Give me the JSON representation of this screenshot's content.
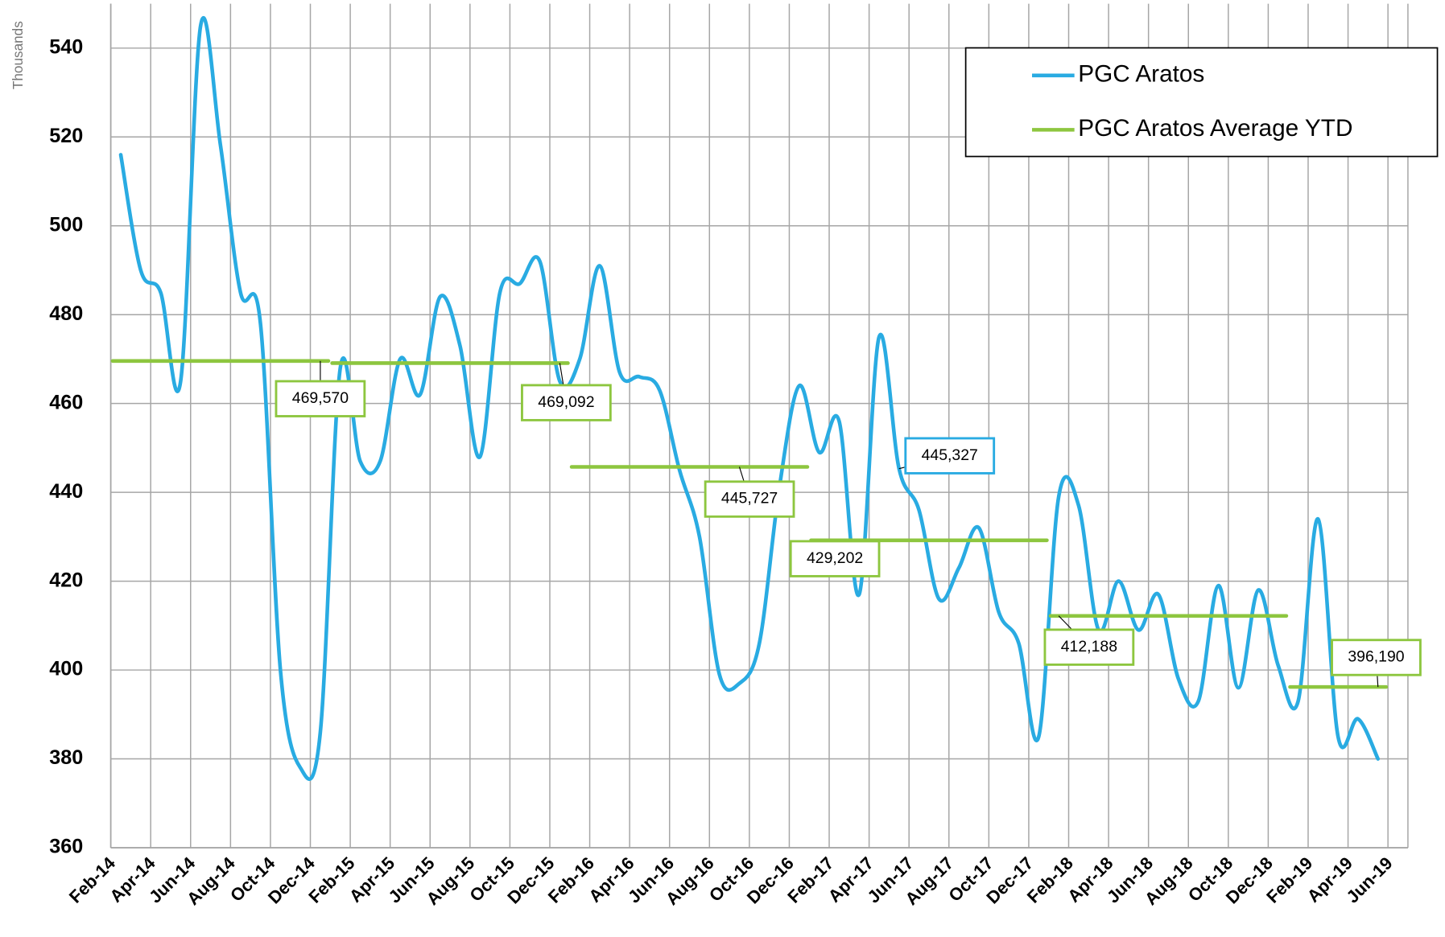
{
  "chart_data": {
    "type": "line",
    "y_axis_label": "Thousands",
    "categories": [
      "Feb-14",
      null,
      "Apr-14",
      null,
      "Jun-14",
      null,
      "Aug-14",
      null,
      "Oct-14",
      null,
      "Dec-14",
      null,
      "Feb-15",
      null,
      "Apr-15",
      null,
      "Jun-15",
      null,
      "Aug-15",
      null,
      "Oct-15",
      null,
      "Dec-15",
      null,
      "Feb-16",
      null,
      "Apr-16",
      null,
      "Jun-16",
      null,
      "Aug-16",
      null,
      "Oct-16",
      null,
      "Dec-16",
      null,
      "Feb-17",
      null,
      "Apr-17",
      null,
      "Jun-17",
      null,
      "Aug-17",
      null,
      "Oct-17",
      null,
      "Dec-17",
      null,
      "Feb-18",
      null,
      "Apr-18",
      null,
      "Jun-18",
      null,
      "Aug-18",
      null,
      "Oct-18",
      null,
      "Dec-18",
      null,
      "Feb-19",
      null,
      "Apr-19",
      null,
      "Jun-19"
    ],
    "series": [
      {
        "name": "PGC Aratos",
        "color": "#29abe2",
        "smooth": true,
        "values": [
          516,
          490,
          485,
          465,
          545,
          518,
          485,
          478,
          400,
          378,
          386,
          468,
          447,
          447,
          470,
          462,
          484,
          473,
          448,
          485,
          487,
          492,
          465,
          470,
          491,
          467,
          466,
          463,
          445,
          430,
          399,
          397,
          406,
          441,
          464,
          449,
          456,
          417,
          475,
          445.327,
          436,
          416,
          423,
          432,
          413,
          406,
          385,
          439,
          437,
          409,
          420,
          409,
          417,
          398,
          393,
          419,
          396,
          418,
          401,
          393,
          434,
          385,
          389,
          380,
          null
        ],
        "value_labels": [
          null,
          null,
          null,
          null,
          null,
          null,
          null,
          null,
          null,
          null,
          null,
          null,
          null,
          null,
          null,
          null,
          null,
          null,
          null,
          null,
          null,
          null,
          null,
          null,
          null,
          null,
          null,
          null,
          null,
          null,
          null,
          null,
          null,
          null,
          null,
          null,
          null,
          null,
          null,
          "445,327",
          null,
          null,
          null,
          null,
          null,
          null,
          null,
          null,
          null,
          null,
          null,
          null,
          null,
          null,
          null,
          null,
          null,
          null,
          null,
          null,
          null,
          null,
          null,
          null,
          null
        ]
      },
      {
        "name": "PGC Aratos Average YTD",
        "color": "#8dc63f",
        "gap_between_steps": true,
        "values": [
          469.57,
          469.57,
          469.57,
          469.57,
          469.57,
          469.57,
          469.57,
          469.57,
          469.57,
          469.57,
          469.57,
          469.092,
          469.092,
          469.092,
          469.092,
          469.092,
          469.092,
          469.092,
          469.092,
          469.092,
          469.092,
          469.092,
          469.092,
          445.727,
          445.727,
          445.727,
          445.727,
          445.727,
          445.727,
          445.727,
          445.727,
          445.727,
          445.727,
          445.727,
          445.727,
          429.202,
          429.202,
          429.202,
          429.202,
          429.202,
          429.202,
          429.202,
          429.202,
          429.202,
          429.202,
          429.202,
          429.202,
          412.188,
          412.188,
          412.188,
          412.188,
          412.188,
          412.188,
          412.188,
          412.188,
          412.188,
          412.188,
          412.188,
          412.188,
          396.19,
          396.19,
          396.19,
          396.19,
          396.19,
          null
        ],
        "value_labels": [
          null,
          null,
          null,
          null,
          null,
          null,
          null,
          null,
          null,
          null,
          "469,570",
          null,
          null,
          null,
          null,
          null,
          null,
          null,
          null,
          null,
          null,
          null,
          "469,092",
          null,
          null,
          null,
          null,
          null,
          null,
          null,
          null,
          "445,727",
          null,
          null,
          null,
          "429,202",
          null,
          null,
          null,
          null,
          null,
          null,
          null,
          null,
          null,
          null,
          null,
          "412,188",
          null,
          null,
          null,
          null,
          null,
          null,
          null,
          null,
          null,
          null,
          null,
          null,
          null,
          null,
          null,
          "396,190",
          null
        ]
      }
    ],
    "ylim": [
      360,
      550
    ],
    "yticks": [
      360,
      380,
      400,
      420,
      440,
      460,
      480,
      500,
      520,
      540
    ],
    "grid": true,
    "legend": "top-right"
  }
}
